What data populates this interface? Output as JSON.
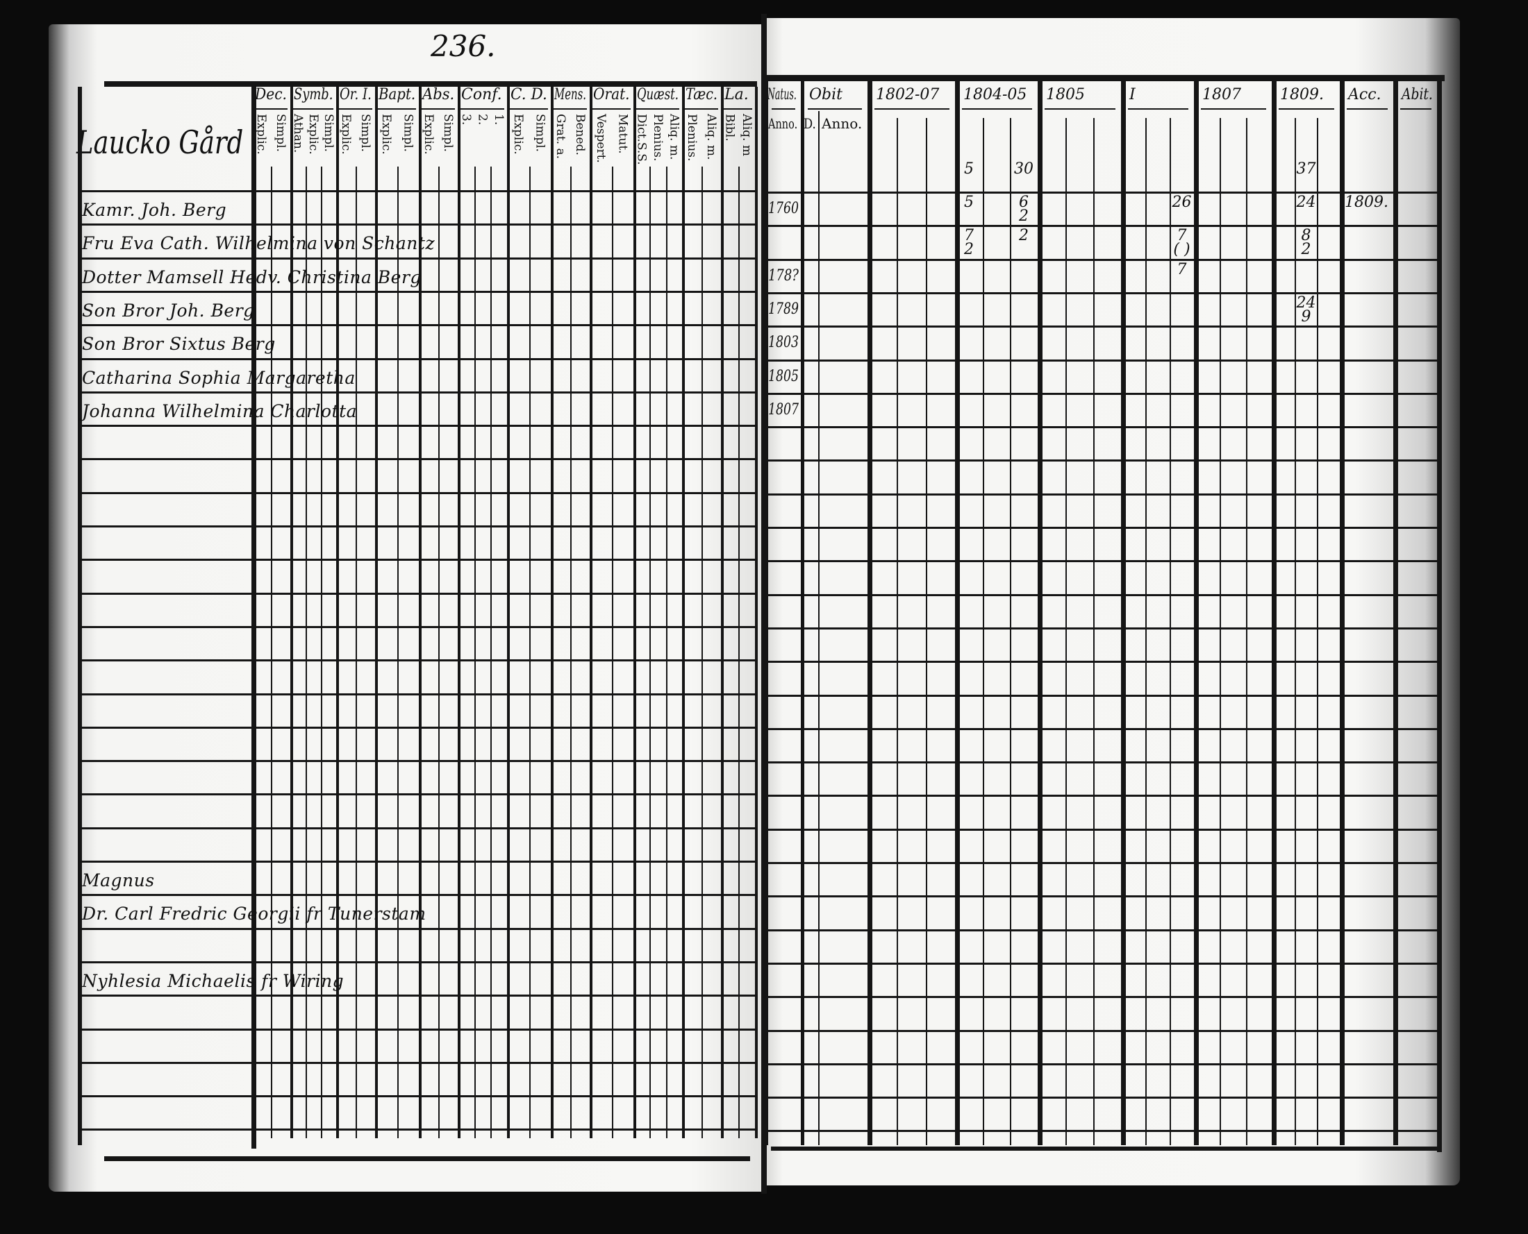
{
  "left_page": {
    "page_number": "236.",
    "farm": "Laucko Gård",
    "columns": [
      {
        "title": "Dec.",
        "sub": [
          "Explic.",
          "Simpl."
        ]
      },
      {
        "title": "Symb.",
        "sub": [
          "Athan.",
          "Explic.",
          "Simpl."
        ]
      },
      {
        "title": "Or. I.",
        "sub": [
          "Explic.",
          "Simpl."
        ]
      },
      {
        "title": "Bapt.",
        "sub": [
          "Explic.",
          "Simpl."
        ]
      },
      {
        "title": "Abs.",
        "sub": [
          "Explic.",
          "Simpl."
        ]
      },
      {
        "title": "Conf.",
        "sub": [
          "3.",
          "2.",
          "1."
        ]
      },
      {
        "title": "C. D.",
        "sub": [
          "Explic.",
          "Simpl."
        ]
      },
      {
        "title": "Mens.",
        "sub": [
          "Grat. a.",
          "Bened."
        ]
      },
      {
        "title": "Orat.",
        "sub": [
          "Vespert.",
          "Matut."
        ]
      },
      {
        "title": "Quæst.",
        "sub": [
          "Dict.S.S.",
          "Plenius.",
          "Aliq. m."
        ]
      },
      {
        "title": "Tæc.",
        "sub": [
          "Plenius.",
          "Aliq. m."
        ]
      },
      {
        "title": "La.",
        "sub": [
          "Bibl.",
          "Aliq. m"
        ]
      }
    ],
    "persons": [
      {
        "row": 0,
        "name": "Kamr. Joh. Berg"
      },
      {
        "row": 1,
        "name": "Fru Eva Cath. Wilhelmina von Schantz"
      },
      {
        "row": 2,
        "name": "Dotter Mamsell Hedv. Christina Berg"
      },
      {
        "row": 3,
        "name": "Son Bror Joh. Berg"
      },
      {
        "row": 4,
        "name": "Son Bror Sixtus Berg"
      },
      {
        "row": 5,
        "name": "Catharina Sophia Margaretha"
      },
      {
        "row": 6,
        "name": "Johanna Wilhelmina Charlotta"
      },
      {
        "row": 20,
        "name": "Magnus"
      },
      {
        "row": 21,
        "name": "Dr. Carl Fredric Georgii fr Tunerstam"
      },
      {
        "row": 23,
        "name": "Nyhlesia Michaelis fr Wiring"
      }
    ]
  },
  "right_page": {
    "columns": [
      {
        "title": "Natus.",
        "sub": [
          "Anno."
        ]
      },
      {
        "title": "Obit",
        "sub": [
          "D.",
          "Anno."
        ]
      },
      {
        "title": "1802-07",
        "sub": []
      },
      {
        "title": "1804-05",
        "sub": []
      },
      {
        "title": "1805",
        "sub": []
      },
      {
        "title": "I",
        "sub": []
      },
      {
        "title": "1807",
        "sub": []
      },
      {
        "title": "1809.",
        "sub": []
      },
      {
        "title": "Acc.",
        "sub": []
      },
      {
        "title": "Abit.",
        "sub": []
      }
    ],
    "birth_years": [
      {
        "row": 0,
        "year": "1760"
      },
      {
        "row": 2,
        "year": "178?"
      },
      {
        "row": 3,
        "year": "1789"
      },
      {
        "row": 4,
        "year": "1803"
      },
      {
        "row": 5,
        "year": "1805"
      },
      {
        "row": 6,
        "year": "1807"
      }
    ],
    "entries": [
      {
        "row": -1,
        "col": "1804-05",
        "sub": 0,
        "text": "5"
      },
      {
        "row": -1,
        "col": "1804-05",
        "sub": 2,
        "text": "30"
      },
      {
        "row": -1,
        "col": "1809.",
        "sub": 1,
        "text": "37"
      },
      {
        "row": 0,
        "col": "1804-05",
        "sub": 0,
        "text": "5"
      },
      {
        "row": 0,
        "col": "1804-05",
        "sub": 2,
        "text": "6\n2"
      },
      {
        "row": 0,
        "col": "I",
        "sub": 2,
        "text": "26"
      },
      {
        "row": 0,
        "col": "1809.",
        "sub": 1,
        "text": "24"
      },
      {
        "row": 0,
        "col": "Acc.",
        "sub": 0,
        "text": "1809."
      },
      {
        "row": 1,
        "col": "1804-05",
        "sub": 0,
        "text": "7\n2"
      },
      {
        "row": 1,
        "col": "1804-05",
        "sub": 2,
        "text": "2"
      },
      {
        "row": 1,
        "col": "I",
        "sub": 2,
        "text": "7\n( )"
      },
      {
        "row": 1,
        "col": "1809.",
        "sub": 1,
        "text": "8\n2"
      },
      {
        "row": 2,
        "col": "I",
        "sub": 2,
        "text": "7"
      },
      {
        "row": 3,
        "col": "1809.",
        "sub": 1,
        "text": "24\n9"
      }
    ]
  },
  "colors": {
    "background": "#0b0b0b",
    "paper": "#f5f5f3",
    "ink": "#111111"
  }
}
